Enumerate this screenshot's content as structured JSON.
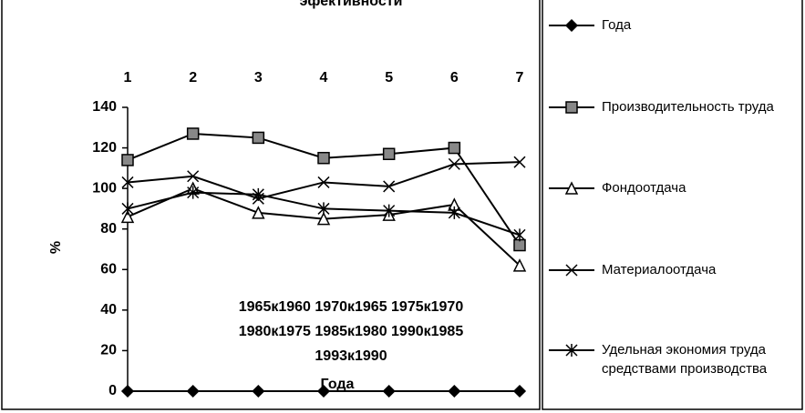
{
  "chart_data": {
    "type": "line",
    "title": "эфективности",
    "categories": [
      "1",
      "2",
      "3",
      "4",
      "5",
      "6",
      "7"
    ],
    "x_label": "Года",
    "y_label": "%",
    "annotations": [
      "1965к1960 1970к1965 1975к1970",
      "1980к1975 1985к1980 1990к1985",
      "1993к1990"
    ],
    "ylim": [
      0,
      140
    ],
    "yticks": [
      0,
      20,
      40,
      60,
      80,
      100,
      120,
      140
    ],
    "legend": "right",
    "series": [
      {
        "name": "Года",
        "color": "#000000",
        "marker": "diamond",
        "values": [
          0,
          0,
          0,
          0,
          0,
          0,
          0
        ]
      },
      {
        "name": "Производительность труда",
        "color": "#000000",
        "marker": "square",
        "values": [
          114,
          127,
          125,
          115,
          117,
          120,
          72
        ]
      },
      {
        "name": "Фондоотдача",
        "color": "#000000",
        "marker": "triangle",
        "values": [
          86,
          100,
          88,
          85,
          87,
          92,
          62
        ]
      },
      {
        "name": "Материалоотдача",
        "color": "#000000",
        "marker": "x",
        "values": [
          103,
          106,
          95,
          103,
          101,
          112,
          113
        ]
      },
      {
        "name": "Удельная экономия труда средствами производства",
        "color": "#000000",
        "marker": "star",
        "values": [
          90,
          98,
          97,
          90,
          89,
          88,
          77
        ]
      }
    ]
  }
}
